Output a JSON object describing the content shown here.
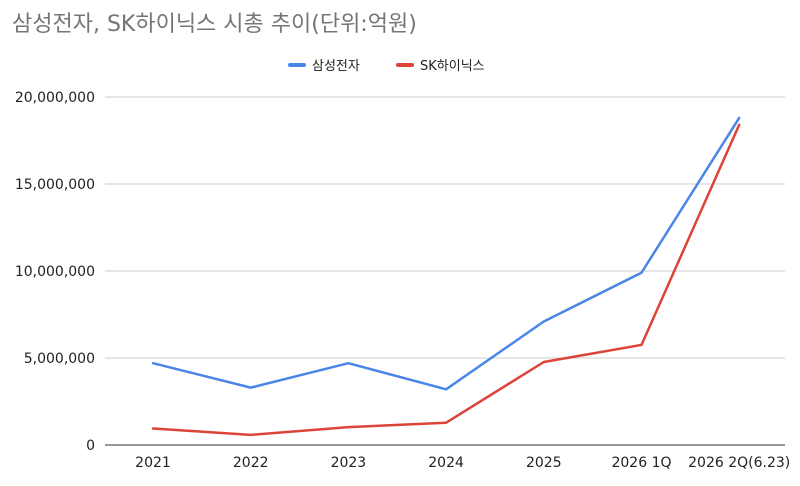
{
  "chart_data": {
    "type": "line",
    "title": "삼성전자, SK하이닉스 시총 추이(단위:억원)",
    "xlabel": "",
    "ylabel": "",
    "categories": [
      "2021",
      "2022",
      "2023",
      "2024",
      "2025",
      "2026 1Q",
      "2026 2Q(6.23)"
    ],
    "series": [
      {
        "name": "삼성전자",
        "color": "#4a86e8",
        "values": [
          4700000,
          3300000,
          4700000,
          3200000,
          7100000,
          9900000,
          18800000
        ]
      },
      {
        "name": "SK하이닉스",
        "color": "#db4437",
        "values": [
          950000,
          580000,
          1030000,
          1280000,
          4770000,
          5750000,
          18400000
        ]
      }
    ],
    "ylim": [
      0,
      20000000
    ],
    "yticks": [
      0,
      5000000,
      10000000,
      15000000,
      20000000
    ],
    "ytick_labels": [
      "0",
      "5,000,000",
      "10,000,000",
      "15,000,000",
      "20,000,000"
    ],
    "grid": true,
    "legend_position": "top-center"
  }
}
